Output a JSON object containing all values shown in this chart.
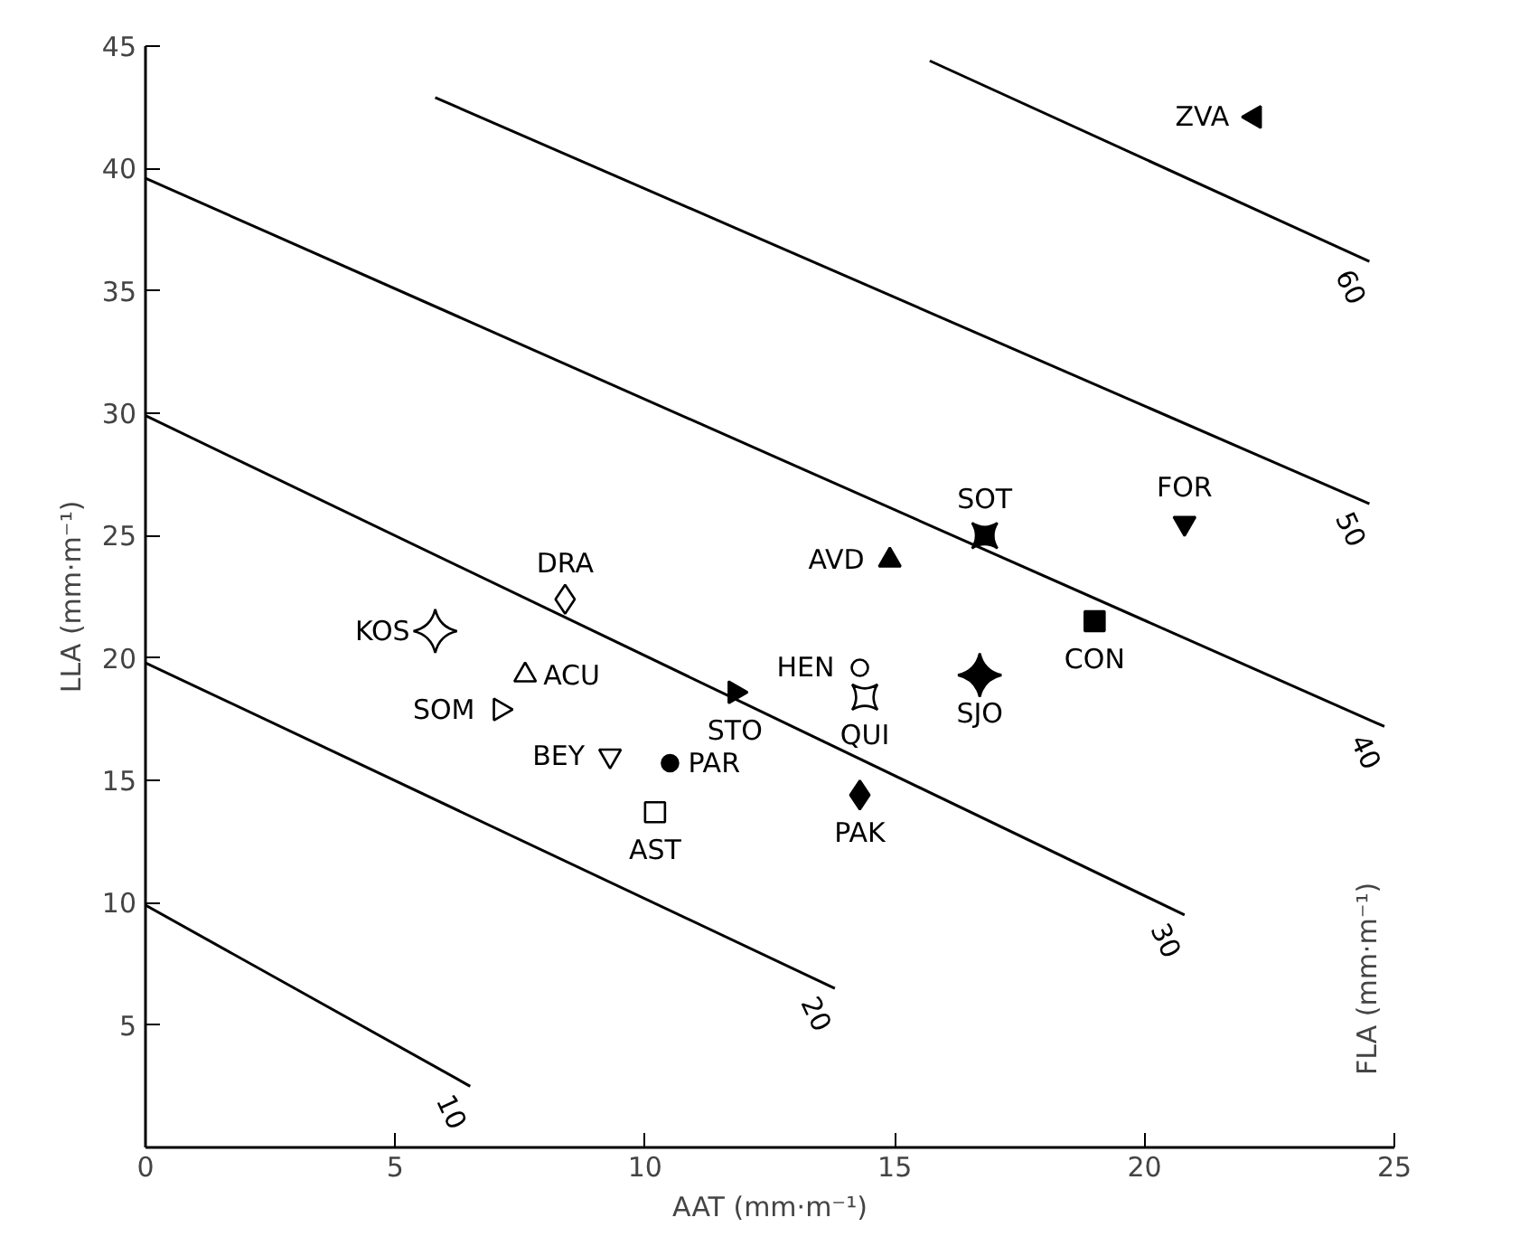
{
  "chart_data": {
    "type": "scatter",
    "xlabel": "AAT (mm·m⁻¹)",
    "ylabel": "LLA (mm·m⁻¹)",
    "xlim": [
      0,
      25
    ],
    "ylim": [
      0,
      45
    ],
    "xticks": [
      0,
      5,
      10,
      15,
      20,
      25
    ],
    "yticks": [
      5,
      10,
      15,
      20,
      25,
      30,
      35,
      40,
      45
    ],
    "grid": false,
    "annotations": [
      "FLA (mm·m⁻¹)"
    ],
    "series": [
      {
        "name": "10",
        "type": "line",
        "color": "#000000",
        "x": [
          0,
          6.5
        ],
        "values": [
          9.9,
          2.5
        ]
      },
      {
        "name": "20",
        "type": "line",
        "color": "#000000",
        "x": [
          0,
          13.8
        ],
        "values": [
          19.8,
          6.5
        ]
      },
      {
        "name": "30",
        "type": "line",
        "color": "#000000",
        "x": [
          0,
          20.8
        ],
        "values": [
          29.9,
          9.5
        ]
      },
      {
        "name": "40",
        "type": "line",
        "color": "#000000",
        "x": [
          0,
          24.8
        ],
        "values": [
          39.6,
          17.2
        ]
      },
      {
        "name": "50",
        "type": "line",
        "color": "#000000",
        "x": [
          5.8,
          24.5
        ],
        "values": [
          42.9,
          26.3
        ]
      },
      {
        "name": "60",
        "type": "line",
        "color": "#000000",
        "x": [
          15.7,
          24.5
        ],
        "values": [
          44.4,
          36.2
        ]
      },
      {
        "name": "ZVA",
        "color": "#000000",
        "x": [
          22.2
        ],
        "values": [
          42.1
        ]
      },
      {
        "name": "FOR",
        "color": "#000000",
        "x": [
          20.8
        ],
        "values": [
          25.5
        ]
      },
      {
        "name": "SOT",
        "color": "#000000",
        "x": [
          16.8
        ],
        "values": [
          25.0
        ]
      },
      {
        "name": "CON",
        "color": "#000000",
        "x": [
          19.0
        ],
        "values": [
          21.5
        ]
      },
      {
        "name": "AVD",
        "color": "#000000",
        "x": [
          14.9
        ],
        "values": [
          24.0
        ]
      },
      {
        "name": "SJO",
        "color": "#000000",
        "x": [
          16.7
        ],
        "values": [
          19.3
        ]
      },
      {
        "name": "HEN",
        "color": "#000000",
        "x": [
          14.3
        ],
        "values": [
          19.6
        ]
      },
      {
        "name": "QUI",
        "color": "#000000",
        "x": [
          14.4
        ],
        "values": [
          18.4
        ]
      },
      {
        "name": "PAK",
        "color": "#000000",
        "x": [
          14.3
        ],
        "values": [
          14.4
        ]
      },
      {
        "name": "STO",
        "color": "#000000",
        "x": [
          11.8
        ],
        "values": [
          18.6
        ]
      },
      {
        "name": "DRA",
        "color": "#000000",
        "x": [
          8.4
        ],
        "values": [
          22.4
        ]
      },
      {
        "name": "KOS",
        "color": "#000000",
        "x": [
          5.8
        ],
        "values": [
          21.1
        ]
      },
      {
        "name": "ACU",
        "color": "#000000",
        "x": [
          7.6
        ],
        "values": [
          19.3
        ]
      },
      {
        "name": "SOM",
        "color": "#000000",
        "x": [
          7.1
        ],
        "values": [
          17.9
        ]
      },
      {
        "name": "BEY",
        "color": "#000000",
        "x": [
          9.3
        ],
        "values": [
          16.0
        ]
      },
      {
        "name": "PAR",
        "color": "#000000",
        "x": [
          10.5
        ],
        "values": [
          15.7
        ]
      },
      {
        "name": "AST",
        "color": "#000000",
        "x": [
          10.2
        ],
        "values": [
          13.7
        ]
      }
    ]
  }
}
